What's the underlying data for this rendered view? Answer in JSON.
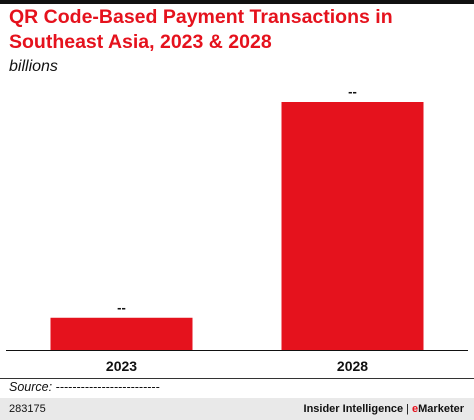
{
  "chart_data": {
    "type": "bar",
    "title": "QR Code-Based Payment Transactions in Southeast Asia, 2023 & 2028",
    "subtitle": "billions",
    "categories": [
      "2023",
      "2028"
    ],
    "values": [
      13,
      100
    ],
    "data_labels": [
      "--",
      "--"
    ],
    "ylim": [
      0,
      100
    ],
    "grid": false,
    "legend": "none",
    "bar_color": "#e5121d"
  },
  "source": "Source: -------------------------",
  "footer": {
    "chart_id": "283175",
    "brand_left": "Insider Intelligence",
    "separator": "|",
    "brand_e": "e",
    "brand_right": "Marketer"
  },
  "colors": {
    "accent": "#e5121d",
    "footer_bg": "#e9e9e9"
  }
}
